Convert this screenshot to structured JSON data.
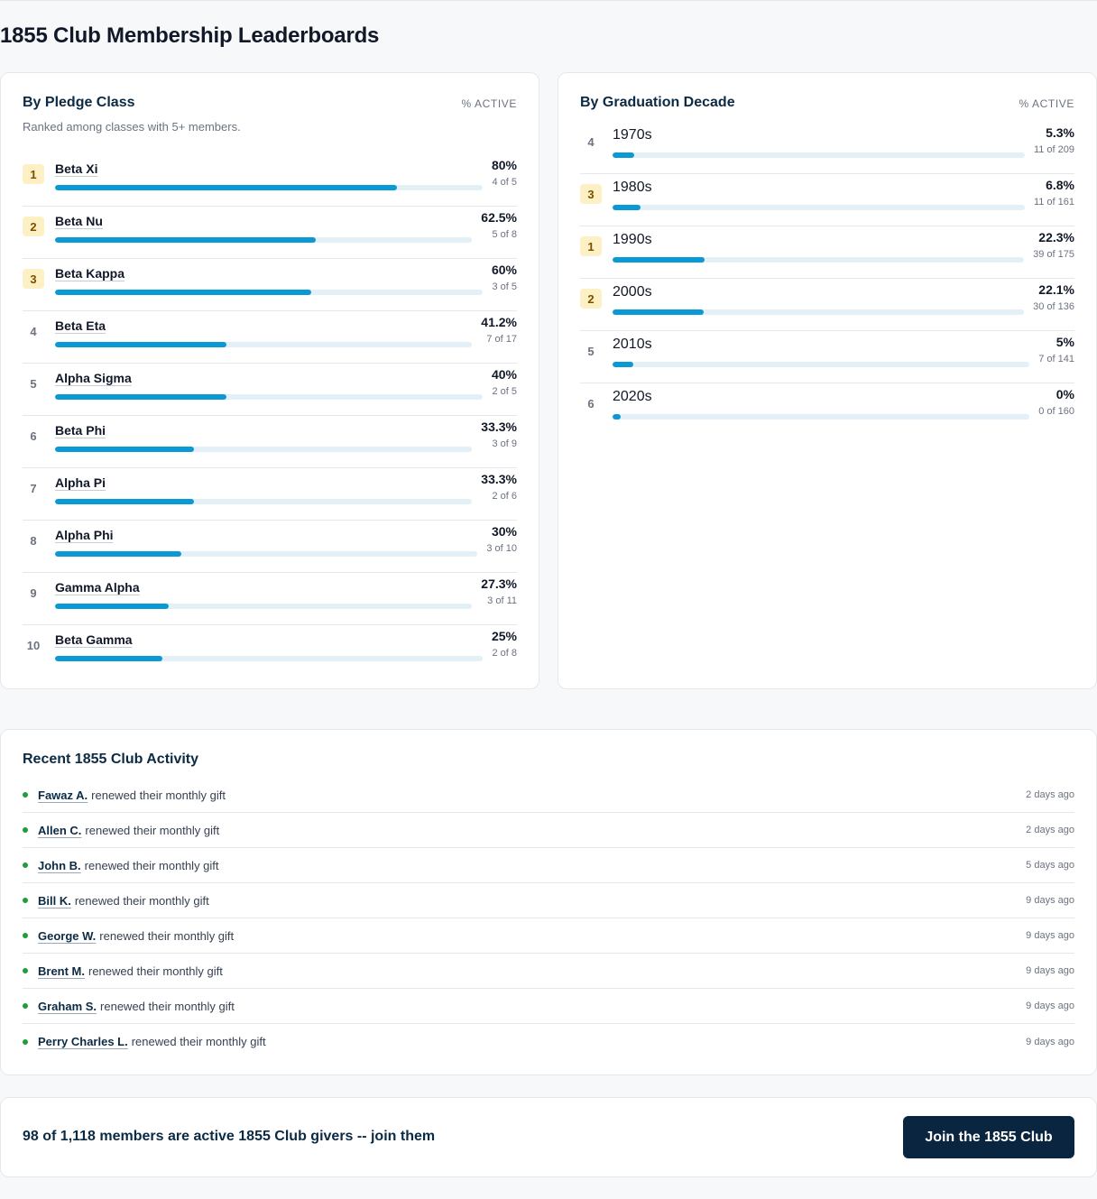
{
  "page_title": "1855 Club Membership Leaderboards",
  "pledge": {
    "title": "By Pledge Class",
    "column_header": "% ACTIVE",
    "subtitle": "Ranked among classes with 5+ members.",
    "rows": [
      {
        "rank": "1",
        "name": "Beta Xi",
        "pct": "80%",
        "count": "4 of 5",
        "fill": 0.8,
        "top": true
      },
      {
        "rank": "2",
        "name": "Beta Nu",
        "pct": "62.5%",
        "count": "5 of 8",
        "fill": 0.625,
        "top": true
      },
      {
        "rank": "3",
        "name": "Beta Kappa",
        "pct": "60%",
        "count": "3 of 5",
        "fill": 0.6,
        "top": true
      },
      {
        "rank": "4",
        "name": "Beta Eta",
        "pct": "41.2%",
        "count": "7 of 17",
        "fill": 0.412,
        "top": false
      },
      {
        "rank": "5",
        "name": "Alpha Sigma",
        "pct": "40%",
        "count": "2 of 5",
        "fill": 0.4,
        "top": false
      },
      {
        "rank": "6",
        "name": "Beta Phi",
        "pct": "33.3%",
        "count": "3 of 9",
        "fill": 0.333,
        "top": false
      },
      {
        "rank": "7",
        "name": "Alpha Pi",
        "pct": "33.3%",
        "count": "2 of 6",
        "fill": 0.333,
        "top": false
      },
      {
        "rank": "8",
        "name": "Alpha Phi",
        "pct": "30%",
        "count": "3 of 10",
        "fill": 0.3,
        "top": false
      },
      {
        "rank": "9",
        "name": "Gamma Alpha",
        "pct": "27.3%",
        "count": "3 of 11",
        "fill": 0.273,
        "top": false
      },
      {
        "rank": "10",
        "name": "Beta Gamma",
        "pct": "25%",
        "count": "2 of 8",
        "fill": 0.25,
        "top": false
      }
    ]
  },
  "graduation": {
    "title": "By Graduation Decade",
    "column_header": "% ACTIVE",
    "rows": [
      {
        "rank": "4",
        "name": "1970s",
        "pct": "5.3%",
        "count": "11 of 209",
        "fill": 0.053,
        "top": false
      },
      {
        "rank": "3",
        "name": "1980s",
        "pct": "6.8%",
        "count": "11 of 161",
        "fill": 0.068,
        "top": true
      },
      {
        "rank": "1",
        "name": "1990s",
        "pct": "22.3%",
        "count": "39 of 175",
        "fill": 0.223,
        "top": true
      },
      {
        "rank": "2",
        "name": "2000s",
        "pct": "22.1%",
        "count": "30 of 136",
        "fill": 0.221,
        "top": true
      },
      {
        "rank": "5",
        "name": "2010s",
        "pct": "5%",
        "count": "7 of 141",
        "fill": 0.05,
        "top": false
      },
      {
        "rank": "6",
        "name": "2020s",
        "pct": "0%",
        "count": "0 of 160",
        "fill": 0.0,
        "top": false
      }
    ]
  },
  "activity": {
    "title": "Recent 1855 Club Activity",
    "items": [
      {
        "name": "Fawaz A.",
        "text": "renewed their monthly gift",
        "time": "2 days ago"
      },
      {
        "name": "Allen C.",
        "text": "renewed their monthly gift",
        "time": "2 days ago"
      },
      {
        "name": "John B.",
        "text": "renewed their monthly gift",
        "time": "5 days ago"
      },
      {
        "name": "Bill K.",
        "text": "renewed their monthly gift",
        "time": "9 days ago"
      },
      {
        "name": "George W.",
        "text": "renewed their monthly gift",
        "time": "9 days ago"
      },
      {
        "name": "Brent M.",
        "text": "renewed their monthly gift",
        "time": "9 days ago"
      },
      {
        "name": "Graham S.",
        "text": "renewed their monthly gift",
        "time": "9 days ago"
      },
      {
        "name": "Perry Charles L.",
        "text": "renewed their monthly gift",
        "time": "9 days ago"
      }
    ]
  },
  "cta": {
    "text": "98 of 1,118 members are active 1855 Club givers -- join them",
    "button_label": "Join the 1855 Club"
  },
  "colors": {
    "bar_fill": "#0b99d6",
    "bar_track": "#e3f0f8",
    "top_rank_badge": "#fdf0c4",
    "activity_dot": "#1f9d3a",
    "cta_button": "#0a2540"
  }
}
